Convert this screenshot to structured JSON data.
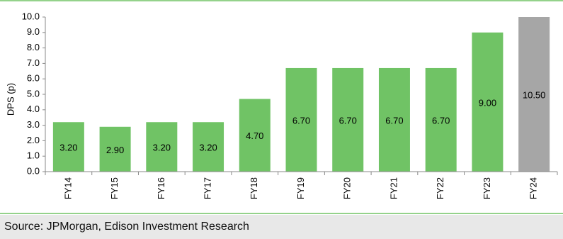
{
  "chart_data": {
    "type": "bar",
    "ylabel": "DPS (p)",
    "categories": [
      "FY14",
      "FY15",
      "FY16",
      "FY17",
      "FY18",
      "FY19",
      "FY20",
      "FY21",
      "FY22",
      "FY23",
      "FY24"
    ],
    "values": [
      3.2,
      2.9,
      3.2,
      3.2,
      4.7,
      6.7,
      6.7,
      6.7,
      6.7,
      9.0,
      10.5
    ],
    "value_labels": [
      "3.20",
      "2.90",
      "3.20",
      "3.20",
      "4.70",
      "6.70",
      "6.70",
      "6.70",
      "6.70",
      "9.00",
      "10.50"
    ],
    "colors": [
      "#70c365",
      "#70c365",
      "#70c365",
      "#70c365",
      "#70c365",
      "#70c365",
      "#70c365",
      "#70c365",
      "#70c365",
      "#70c365",
      "#a6a6a6"
    ],
    "ylim": [
      0,
      10
    ],
    "yticks": [
      {
        "value": 0,
        "label": "0.0"
      },
      {
        "value": 1,
        "label": "1.0"
      },
      {
        "value": 2,
        "label": "2.0"
      },
      {
        "value": 3,
        "label": "3.0"
      },
      {
        "value": 4,
        "label": "4.0"
      },
      {
        "value": 5,
        "label": "5.0"
      },
      {
        "value": 6,
        "label": "6.0"
      },
      {
        "value": 7,
        "label": "7.0"
      },
      {
        "value": 8,
        "label": "8.0"
      },
      {
        "value": 9,
        "label": "9.0"
      },
      {
        "value": 10,
        "label": "10.0"
      }
    ],
    "grid": false,
    "source": "Source: JPMorgan, Edison Investment Research"
  }
}
